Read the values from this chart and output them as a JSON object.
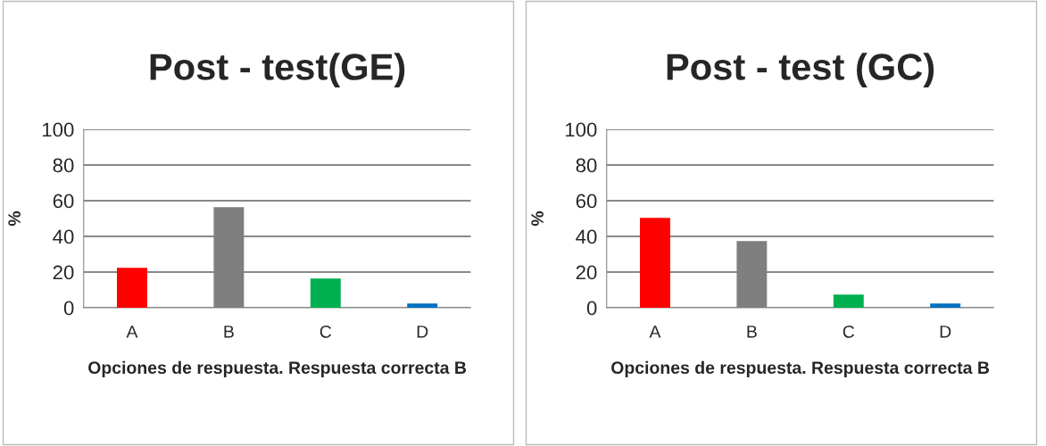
{
  "chart_data": [
    {
      "type": "bar",
      "title": "Post - test(GE)",
      "xlabel": "Opciones de respuesta. Respuesta correcta B",
      "ylabel": "%",
      "categories": [
        "A",
        "B",
        "C",
        "D"
      ],
      "values": [
        22,
        56,
        16,
        2
      ],
      "colors": [
        "#ff0000",
        "#7f7f7f",
        "#00b050",
        "#0070c0"
      ],
      "ylim": [
        0,
        100
      ],
      "yticks": [
        0,
        20,
        40,
        60,
        80,
        100
      ],
      "grid": "y",
      "legend": false
    },
    {
      "type": "bar",
      "title": "Post - test (GC)",
      "xlabel": "Opciones de respuesta. Respuesta correcta B",
      "ylabel": "%",
      "categories": [
        "A",
        "B",
        "C",
        "D"
      ],
      "values": [
        50,
        37,
        7,
        2
      ],
      "colors": [
        "#ff0000",
        "#7f7f7f",
        "#00b050",
        "#0070c0"
      ],
      "ylim": [
        0,
        100
      ],
      "yticks": [
        0,
        20,
        40,
        60,
        80,
        100
      ],
      "grid": "y",
      "legend": false
    }
  ]
}
